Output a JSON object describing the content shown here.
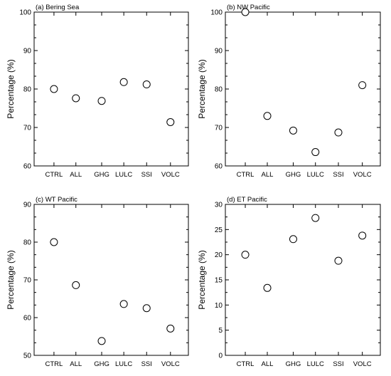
{
  "chart_data": [
    {
      "type": "scatter",
      "title": "(a) Bering Sea",
      "ylabel": "Percentage (%)",
      "categories": [
        "CTRL",
        "ALL",
        "GHG",
        "LULC",
        "SSI",
        "VOLC"
      ],
      "values": [
        80.0,
        77.6,
        76.9,
        81.8,
        81.2,
        71.4
      ],
      "ylim": [
        60,
        100
      ],
      "yticks": [
        60,
        70,
        80,
        90,
        100
      ],
      "yminor": 2
    },
    {
      "type": "scatter",
      "title": "(b) NW Pacific",
      "ylabel": "Percentage (%)",
      "categories": [
        "CTRL",
        "ALL",
        "GHG",
        "LULC",
        "SSI",
        "VOLC"
      ],
      "values": [
        100.0,
        73.0,
        69.2,
        63.6,
        68.7,
        81.0
      ],
      "ylim": [
        60,
        100
      ],
      "yticks": [
        60,
        70,
        80,
        90,
        100
      ],
      "yminor": 2
    },
    {
      "type": "scatter",
      "title": "(c) WT Pacific",
      "ylabel": "Percentage (%)",
      "categories": [
        "CTRL",
        "ALL",
        "GHG",
        "LULC",
        "SSI",
        "VOLC"
      ],
      "values": [
        80.0,
        68.6,
        53.8,
        63.6,
        62.5,
        57.1
      ],
      "ylim": [
        50,
        90
      ],
      "yticks": [
        50,
        60,
        70,
        80,
        90
      ],
      "yminor": 2
    },
    {
      "type": "scatter",
      "title": "(d) ET Pacific",
      "ylabel": "Percentage (%)",
      "categories": [
        "CTRL",
        "ALL",
        "GHG",
        "LULC",
        "SSI",
        "VOLC"
      ],
      "values": [
        20.0,
        13.4,
        23.1,
        27.3,
        18.8,
        23.8
      ],
      "ylim": [
        0,
        30
      ],
      "yticks": [
        0,
        5,
        10,
        15,
        20,
        25,
        30
      ],
      "yminor": 1
    }
  ]
}
